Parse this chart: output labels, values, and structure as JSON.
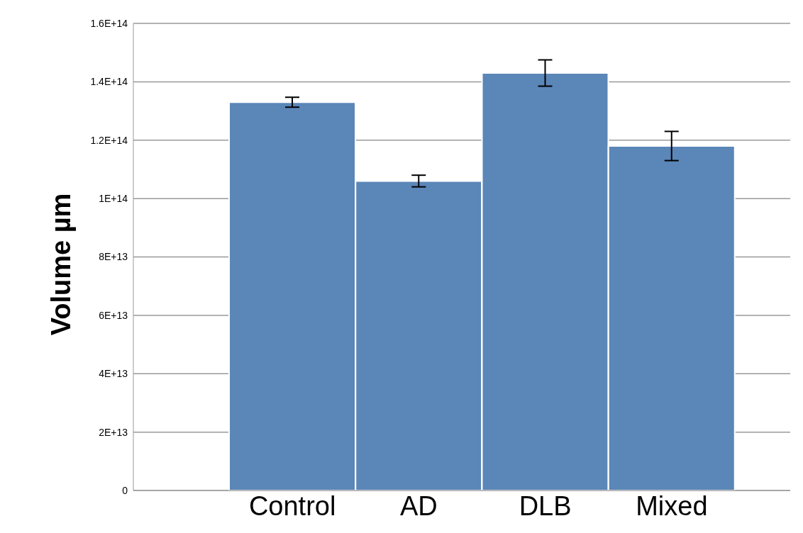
{
  "chart_data": {
    "type": "bar",
    "ylabel": "Volume µm",
    "categories": [
      "Control",
      "AD",
      "DLB",
      "Mixed"
    ],
    "values": [
      133000000000000,
      106000000000000,
      143000000000000,
      118000000000000
    ],
    "errors": [
      1700000000000,
      2000000000000,
      4500000000000,
      5000000000000
    ],
    "color": "#5b86b8",
    "ylim": [
      0,
      160000000000000
    ],
    "yticks": [
      {
        "value": 0,
        "label": "0"
      },
      {
        "value": 20000000000000,
        "label": "2E+13"
      },
      {
        "value": 40000000000000,
        "label": "4E+13"
      },
      {
        "value": 60000000000000,
        "label": "6E+13"
      },
      {
        "value": 80000000000000,
        "label": "8E+13"
      },
      {
        "value": 100000000000000,
        "label": "1E+14"
      },
      {
        "value": 120000000000000,
        "label": "1.2E+14"
      },
      {
        "value": 140000000000000,
        "label": "1.4E+14"
      },
      {
        "value": 160000000000000,
        "label": "1.6E+14"
      }
    ],
    "grid": "y"
  }
}
